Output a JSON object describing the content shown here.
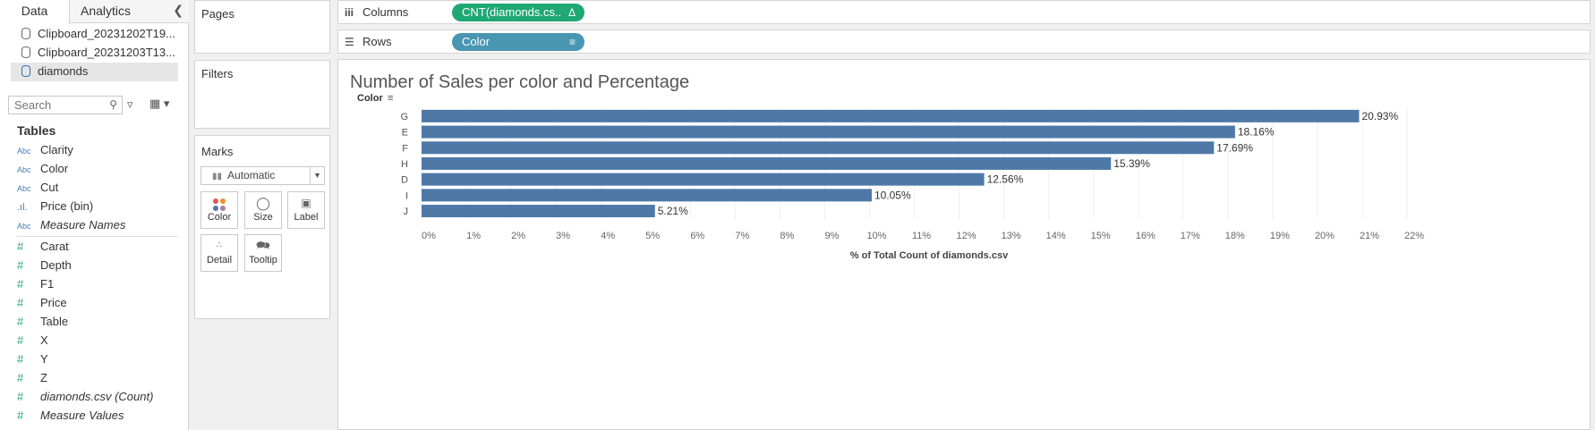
{
  "left_pane": {
    "tabs": {
      "data": "Data",
      "analytics": "Analytics"
    },
    "collapse_icon": "chevron-left-icon",
    "data_sources": [
      {
        "name": "Clipboard_20231202T19..."
      },
      {
        "name": "Clipboard_20231203T13..."
      },
      {
        "name": "diamonds"
      }
    ],
    "search": {
      "placeholder": "Search"
    },
    "tables_heading": "Tables",
    "dimensions": [
      {
        "type": "Abc",
        "name": "Clarity"
      },
      {
        "type": "Abc",
        "name": "Color"
      },
      {
        "type": "Abc",
        "name": "Cut"
      },
      {
        "type": "bin",
        "name": "Price (bin)"
      },
      {
        "type": "Abc",
        "name": "Measure Names"
      }
    ],
    "measures": [
      {
        "name": "Carat"
      },
      {
        "name": "Depth"
      },
      {
        "name": "F1"
      },
      {
        "name": "Price"
      },
      {
        "name": "Table"
      },
      {
        "name": "X"
      },
      {
        "name": "Y"
      },
      {
        "name": "Z"
      },
      {
        "name": "diamonds.csv (Count)"
      },
      {
        "name": "Measure Values"
      }
    ]
  },
  "cards": {
    "pages": "Pages",
    "filters": "Filters",
    "marks": "Marks",
    "mark_type": "Automatic",
    "mark_buttons": {
      "color": "Color",
      "size": "Size",
      "label": "Label",
      "detail": "Detail",
      "tooltip": "Tooltip"
    }
  },
  "shelves": {
    "columns_label": "Columns",
    "columns_pill": "CNT(diamonds.cs..",
    "rows_label": "Rows",
    "rows_pill": "Color"
  },
  "chart_data": {
    "type": "bar",
    "orientation": "horizontal",
    "title": "Number of Sales per color and Percentage",
    "row_header": "Color",
    "categories": [
      "G",
      "E",
      "F",
      "H",
      "D",
      "I",
      "J"
    ],
    "values": [
      20.93,
      18.16,
      17.69,
      15.39,
      12.56,
      10.05,
      5.21
    ],
    "data_labels": [
      "20.93%",
      "18.16%",
      "17.69%",
      "15.39%",
      "12.56%",
      "10.05%",
      "5.21%"
    ],
    "xlabel": "% of Total Count of diamonds.csv",
    "xlim": [
      0,
      22
    ],
    "x_ticks": [
      "0%",
      "1%",
      "2%",
      "3%",
      "4%",
      "5%",
      "6%",
      "7%",
      "8%",
      "9%",
      "10%",
      "11%",
      "12%",
      "13%",
      "14%",
      "15%",
      "16%",
      "17%",
      "18%",
      "19%",
      "20%",
      "21%",
      "22%"
    ],
    "grid": true,
    "bar_color": "#4e79a7"
  }
}
